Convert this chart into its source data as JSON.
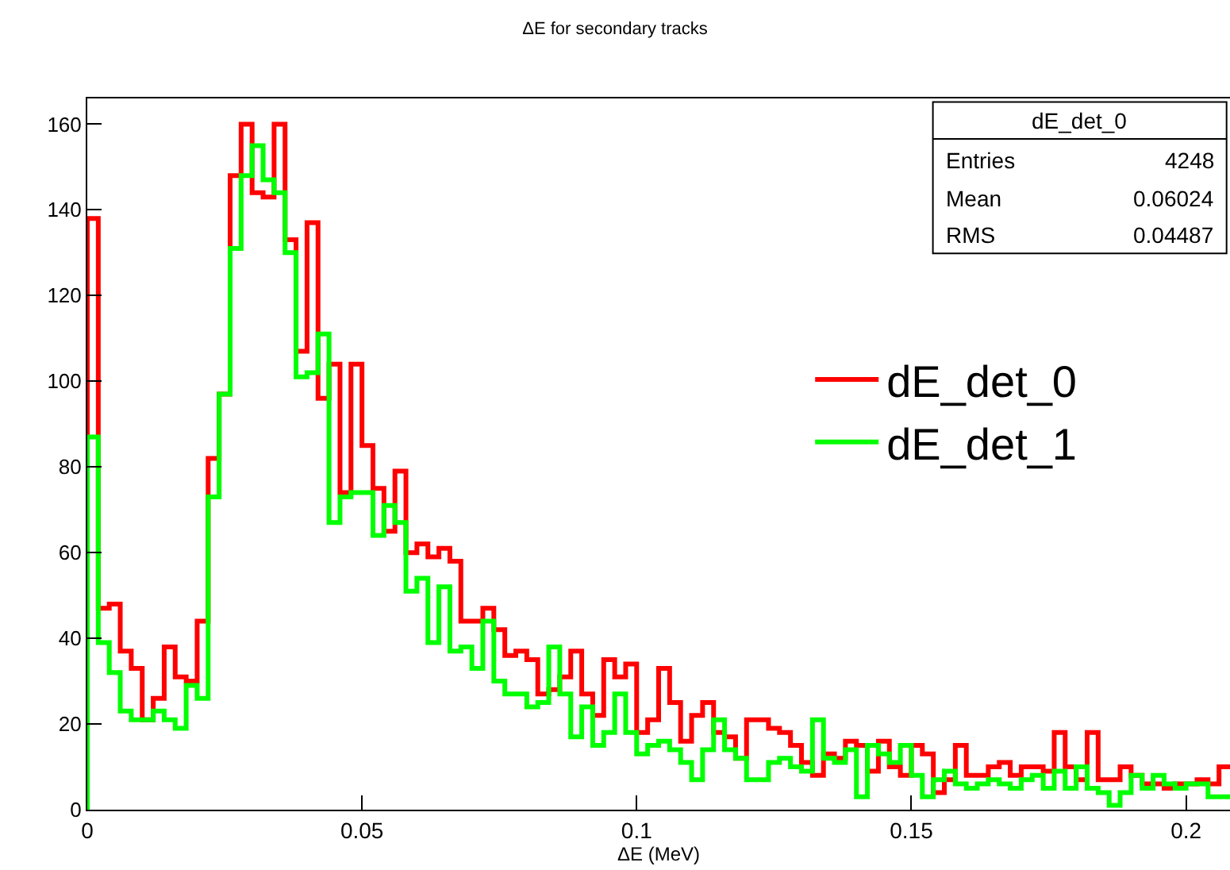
{
  "chart_data": {
    "type": "histogram",
    "title": "ΔE for secondary tracks",
    "xlabel": "ΔE (MeV)",
    "bins": [
      0,
      0.002,
      0.004,
      0.006,
      0.008,
      0.01,
      0.012,
      0.014,
      0.016,
      0.018,
      0.02,
      0.022,
      0.024,
      0.026,
      0.028,
      0.03,
      0.032,
      0.034,
      0.036,
      0.038,
      0.04,
      0.042,
      0.044,
      0.046,
      0.048,
      0.05,
      0.052,
      0.054,
      0.056,
      0.058,
      0.06,
      0.062,
      0.064,
      0.066,
      0.068,
      0.07,
      0.072,
      0.074,
      0.076,
      0.078,
      0.08,
      0.082,
      0.084,
      0.086,
      0.088,
      0.09,
      0.092,
      0.094,
      0.096,
      0.098,
      0.1,
      0.102,
      0.104,
      0.106,
      0.108,
      0.11,
      0.112,
      0.114,
      0.116,
      0.118,
      0.12,
      0.122,
      0.124,
      0.126,
      0.128,
      0.13,
      0.132,
      0.134,
      0.136,
      0.138,
      0.14,
      0.142,
      0.144,
      0.146,
      0.148,
      0.15,
      0.152,
      0.154,
      0.156,
      0.158,
      0.16,
      0.162,
      0.164,
      0.166,
      0.168,
      0.17,
      0.172,
      0.174,
      0.176,
      0.178,
      0.18,
      0.182,
      0.184,
      0.186,
      0.188,
      0.19,
      0.192,
      0.194,
      0.196,
      0.198,
      0.2,
      0.202,
      0.204,
      0.206,
      0.208
    ],
    "series": [
      {
        "name": "dE_det_0",
        "color": "#ff0000",
        "values": [
          138,
          47,
          48,
          37,
          33,
          21,
          26,
          38,
          31,
          30,
          44,
          82,
          97,
          148,
          160,
          144,
          143,
          160,
          133,
          107,
          137,
          96,
          104,
          74,
          104,
          85,
          75,
          65,
          79,
          60,
          62,
          59,
          61,
          58,
          44,
          44,
          47,
          42,
          36,
          37,
          35,
          27,
          28,
          31,
          37,
          27,
          22,
          35,
          31,
          34,
          18,
          21,
          33,
          25,
          16,
          22,
          25,
          18,
          17,
          12,
          21,
          21,
          19,
          18,
          15,
          11,
          8,
          13,
          12,
          16,
          15,
          9,
          16,
          10,
          8,
          15,
          13,
          4,
          7,
          15,
          8,
          8,
          10,
          11,
          8,
          10,
          10,
          9,
          18,
          10,
          7,
          18,
          7,
          7,
          10,
          8,
          6,
          6,
          5,
          6,
          6,
          7,
          6,
          10
        ]
      },
      {
        "name": "dE_det_1",
        "color": "#00ff00",
        "values": [
          87,
          39,
          32,
          23,
          21,
          21,
          23,
          21,
          19,
          29,
          26,
          73,
          97,
          131,
          148,
          155,
          147,
          144,
          130,
          101,
          102,
          111,
          67,
          73,
          74,
          74,
          64,
          71,
          67,
          51,
          54,
          39,
          52,
          37,
          38,
          33,
          44,
          30,
          27,
          27,
          24,
          25,
          38,
          27,
          17,
          24,
          15,
          18,
          27,
          18,
          13,
          15,
          16,
          14,
          11,
          7,
          14,
          21,
          14,
          12,
          7,
          7,
          11,
          12,
          10,
          9,
          21,
          12,
          11,
          14,
          3,
          15,
          13,
          11,
          15,
          8,
          3,
          7,
          9,
          6,
          5,
          6,
          7,
          6,
          5,
          7,
          8,
          5,
          9,
          5,
          10,
          5,
          4,
          1,
          4,
          8,
          5,
          8,
          6,
          5,
          6,
          6,
          3,
          3
        ]
      }
    ],
    "xlim": [
      0,
      0.208
    ],
    "xticks": [
      0,
      0.05,
      0.1,
      0.15,
      0.2
    ],
    "ylim": [
      0,
      166
    ],
    "yticks": [
      0,
      20,
      40,
      60,
      80,
      100,
      120,
      140,
      160
    ],
    "legend": "right",
    "grid": false,
    "annotations": [
      "dE_det_0",
      "Entries",
      "4248",
      "Mean",
      "0.06024",
      "RMS",
      "0.04487"
    ]
  }
}
